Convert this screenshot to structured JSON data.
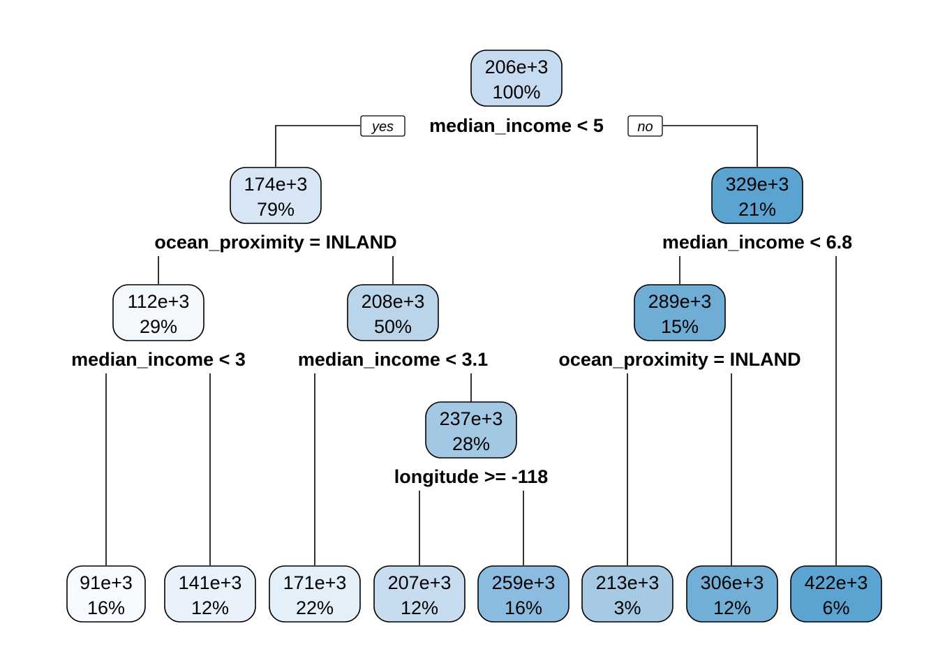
{
  "tree": {
    "branch_labels": {
      "yes": "yes",
      "no": "no"
    },
    "nodes": [
      {
        "id": "root",
        "value": "206e+3",
        "percent": "100%",
        "color": "#c6dbef",
        "split": "median_income < 5"
      },
      {
        "id": "l",
        "value": "174e+3",
        "percent": "79%",
        "color": "#d7e6f4",
        "split": "ocean_proximity = INLAND"
      },
      {
        "id": "r",
        "value": "329e+3",
        "percent": "21%",
        "color": "#5ba3d0",
        "split": "median_income < 6.8"
      },
      {
        "id": "ll",
        "value": "112e+3",
        "percent": "29%",
        "color": "#f3f8fd",
        "split": "median_income < 3"
      },
      {
        "id": "lr",
        "value": "208e+3",
        "percent": "50%",
        "color": "#bad5ea",
        "split": "median_income < 3.1"
      },
      {
        "id": "rl",
        "value": "289e+3",
        "percent": "15%",
        "color": "#6fadd5",
        "split": "ocean_proximity = INLAND"
      },
      {
        "id": "lrr",
        "value": "237e+3",
        "percent": "28%",
        "color": "#a2c8e3",
        "split": "longitude >= -118"
      },
      {
        "id": "leaf1",
        "value": "91e+3",
        "percent": "16%",
        "color": "#f7fbff"
      },
      {
        "id": "leaf2",
        "value": "141e+3",
        "percent": "12%",
        "color": "#e9f2fb"
      },
      {
        "id": "leaf3",
        "value": "171e+3",
        "percent": "22%",
        "color": "#e3eff9"
      },
      {
        "id": "leaf4",
        "value": "207e+3",
        "percent": "12%",
        "color": "#c8dcf0"
      },
      {
        "id": "leaf5",
        "value": "259e+3",
        "percent": "16%",
        "color": "#8bbcdf"
      },
      {
        "id": "leaf6",
        "value": "213e+3",
        "percent": "3%",
        "color": "#a6cae4"
      },
      {
        "id": "leaf7",
        "value": "306e+3",
        "percent": "12%",
        "color": "#72afd6"
      },
      {
        "id": "leaf8",
        "value": "422e+3",
        "percent": "6%",
        "color": "#5ba3d0"
      }
    ]
  }
}
